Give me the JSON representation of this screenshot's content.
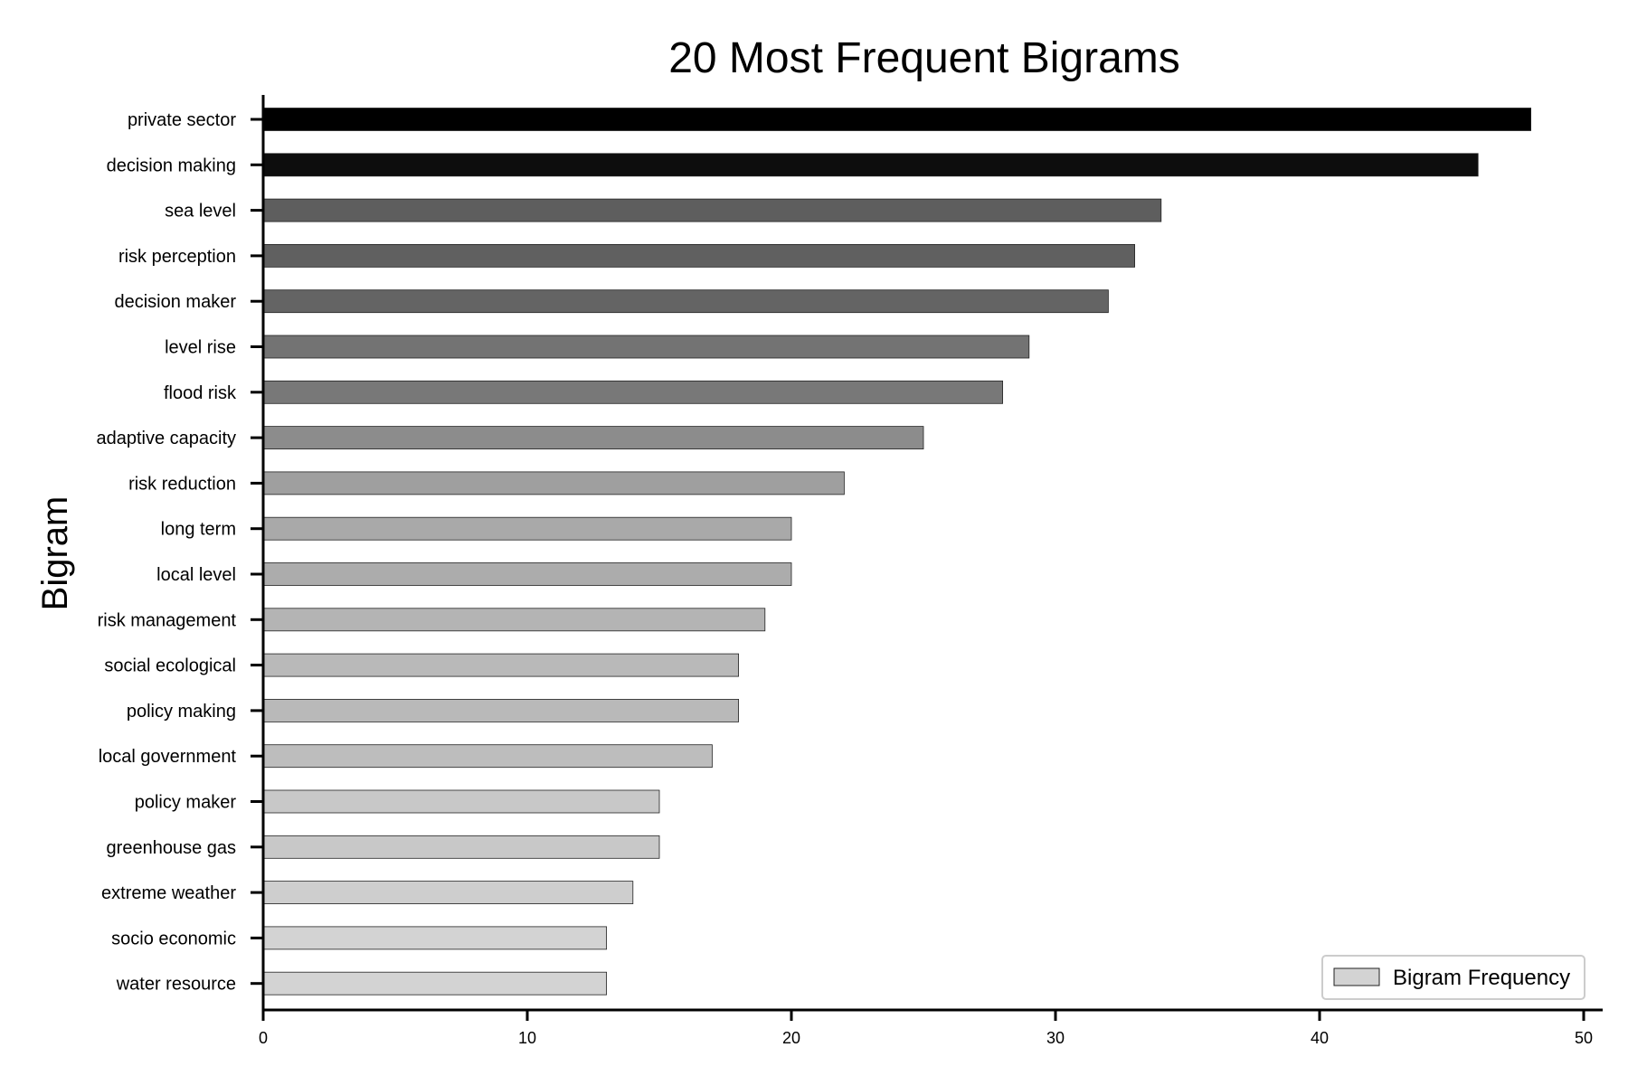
{
  "chart_data": {
    "type": "bar",
    "orientation": "horizontal",
    "title": "20 Most Frequent Bigrams",
    "ylabel": "Bigram",
    "xlabel": "",
    "xlim": [
      0,
      50
    ],
    "x_ticks": [
      0,
      10,
      20,
      30,
      40,
      50
    ],
    "grid": false,
    "legend": {
      "placement": "bottom-right",
      "entries": [
        "Bigram Frequency"
      ],
      "swatch_color": "#d3d3d3"
    },
    "categories": [
      "private sector",
      "decision making",
      "sea level",
      "risk perception",
      "decision maker",
      "level rise",
      "flood risk",
      "adaptive capacity",
      "risk reduction",
      "long term",
      "local level",
      "risk management",
      "social ecological",
      "policy making",
      "local government",
      "policy maker",
      "greenhouse gas",
      "extreme weather",
      "socio economic",
      "water resource"
    ],
    "series": [
      {
        "name": "Bigram Frequency",
        "values": [
          48,
          46,
          34,
          33,
          32,
          29,
          28,
          25,
          22,
          20,
          20,
          19,
          18,
          18,
          17,
          15,
          15,
          14,
          13,
          13
        ],
        "colors": [
          "#000000",
          "#0d0d0d",
          "#5e5e5e",
          "#606060",
          "#646464",
          "#737373",
          "#787878",
          "#8c8c8c",
          "#9f9f9f",
          "#a9a9a9",
          "#acacac",
          "#b4b4b4",
          "#b9b9b9",
          "#b9b9b9",
          "#bdbdbd",
          "#c8c8c8",
          "#c8c8c8",
          "#cecece",
          "#d3d3d3",
          "#d3d3d3"
        ]
      }
    ]
  }
}
